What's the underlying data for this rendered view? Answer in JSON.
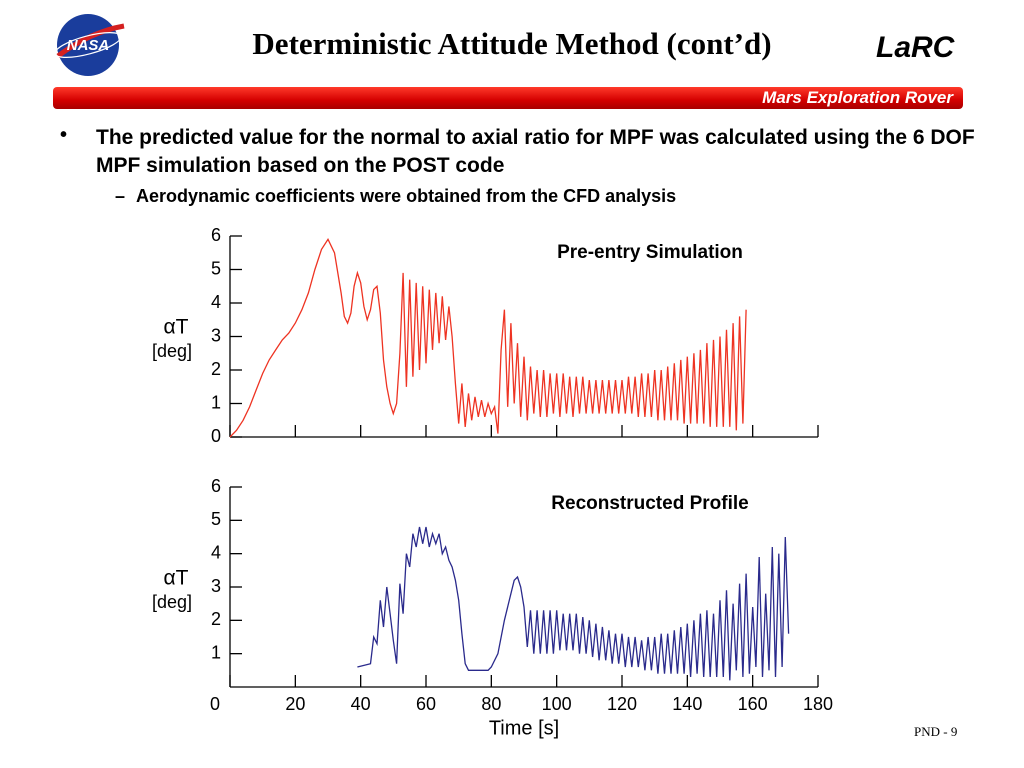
{
  "header": {
    "logo_text": "NASA",
    "title": "Deterministic Attitude Method (cont’d)",
    "center": "LaRC",
    "banner": "Mars Exploration Rover"
  },
  "bullets": [
    {
      "text": "The predicted value for the normal to axial ratio for MPF was calculated using the 6 DOF MPF simulation based on the POST code",
      "sub": [
        "Aerodynamic coefficients were obtained from the CFD analysis"
      ]
    }
  ],
  "footer": "PND - 9",
  "chart_data": [
    {
      "type": "line",
      "title": "Pre-entry Simulation",
      "ylabel": "αT",
      "ylabel_unit": "[deg]",
      "xlim": [
        0,
        180
      ],
      "ylim": [
        0,
        6
      ],
      "yticks": [
        0,
        1,
        2,
        3,
        4,
        5,
        6
      ],
      "x": [
        0,
        2,
        4,
        6,
        8,
        10,
        12,
        14,
        16,
        18,
        20,
        22,
        24,
        26,
        28,
        30,
        32,
        34,
        35,
        36,
        37,
        38,
        39,
        40,
        41,
        42,
        43,
        44,
        45,
        46,
        47,
        48,
        49,
        50,
        51,
        52,
        53,
        54,
        55,
        56,
        57,
        58,
        59,
        60,
        61,
        62,
        63,
        64,
        65,
        66,
        67,
        68,
        69,
        70,
        71,
        72,
        73,
        74,
        75,
        76,
        77,
        78,
        79,
        80,
        81,
        82,
        83,
        84,
        85,
        86,
        87,
        88,
        89,
        90,
        91,
        92,
        93,
        94,
        95,
        96,
        97,
        98,
        99,
        100,
        101,
        102,
        103,
        104,
        105,
        106,
        107,
        108,
        109,
        110,
        111,
        112,
        113,
        114,
        115,
        116,
        117,
        118,
        119,
        120,
        121,
        122,
        123,
        124,
        125,
        126,
        127,
        128,
        129,
        130,
        131,
        132,
        133,
        134,
        135,
        136,
        137,
        138,
        139,
        140,
        141,
        142,
        143,
        144,
        145,
        146,
        147,
        148,
        149,
        150,
        151,
        152,
        153,
        154,
        155,
        156,
        157,
        158
      ],
      "series": [
        {
          "color": "#ee3322",
          "values": [
            0,
            0.2,
            0.5,
            0.9,
            1.4,
            1.9,
            2.3,
            2.6,
            2.9,
            3.1,
            3.4,
            3.8,
            4.3,
            5.0,
            5.6,
            5.9,
            5.5,
            4.3,
            3.6,
            3.4,
            3.7,
            4.5,
            4.9,
            4.6,
            3.9,
            3.5,
            3.8,
            4.4,
            4.5,
            3.7,
            2.3,
            1.5,
            1.0,
            0.7,
            1.0,
            2.5,
            4.9,
            1.5,
            4.7,
            1.8,
            4.6,
            2.0,
            4.5,
            2.2,
            4.4,
            2.6,
            4.3,
            2.8,
            4.2,
            2.9,
            3.9,
            3.0,
            1.6,
            0.4,
            1.6,
            0.3,
            1.3,
            0.5,
            1.2,
            0.6,
            1.1,
            0.6,
            1.0,
            0.7,
            0.9,
            0.1,
            2.6,
            3.8,
            0.9,
            3.4,
            1.0,
            2.8,
            0.6,
            2.4,
            0.5,
            2.1,
            0.7,
            2.0,
            0.6,
            2.0,
            0.6,
            1.9,
            0.7,
            1.9,
            0.6,
            1.9,
            0.7,
            1.8,
            0.6,
            1.8,
            0.7,
            1.8,
            0.7,
            1.7,
            0.7,
            1.7,
            0.7,
            1.7,
            0.7,
            1.7,
            0.7,
            1.7,
            0.7,
            1.7,
            0.7,
            1.8,
            0.7,
            1.8,
            0.6,
            1.9,
            0.6,
            1.9,
            0.6,
            2.0,
            0.5,
            2.0,
            0.5,
            2.1,
            0.5,
            2.2,
            0.5,
            2.3,
            0.4,
            2.4,
            0.4,
            2.5,
            0.4,
            2.6,
            0.4,
            2.8,
            0.3,
            2.9,
            0.3,
            3.0,
            0.3,
            3.2,
            0.3,
            3.4,
            0.2,
            3.6,
            0.4,
            3.8
          ]
        }
      ]
    },
    {
      "type": "line",
      "title": "Reconstructed Profile",
      "ylabel": "αT",
      "ylabel_unit": "[deg]",
      "xlabel": "Time [s]",
      "xlim": [
        0,
        180
      ],
      "ylim": [
        0,
        6
      ],
      "yticks": [
        1,
        2,
        3,
        4,
        5,
        6
      ],
      "xticks": [
        0,
        20,
        40,
        60,
        80,
        100,
        120,
        140,
        160,
        180
      ],
      "x": [
        39,
        43,
        44,
        45,
        46,
        47,
        48,
        49,
        50,
        51,
        52,
        53,
        54,
        55,
        56,
        57,
        58,
        59,
        60,
        61,
        62,
        63,
        64,
        65,
        66,
        67,
        68,
        69,
        70,
        71,
        72,
        73,
        75,
        77,
        79,
        80,
        82,
        84,
        86,
        87,
        88,
        89,
        90,
        91,
        92,
        93,
        94,
        95,
        96,
        97,
        98,
        99,
        100,
        101,
        102,
        103,
        104,
        105,
        106,
        107,
        108,
        109,
        110,
        111,
        112,
        113,
        114,
        115,
        116,
        117,
        118,
        119,
        120,
        121,
        122,
        123,
        124,
        125,
        126,
        127,
        128,
        129,
        130,
        131,
        132,
        133,
        134,
        135,
        136,
        137,
        138,
        139,
        140,
        141,
        142,
        143,
        144,
        145,
        146,
        147,
        148,
        149,
        150,
        151,
        152,
        153,
        154,
        155,
        156,
        157,
        158,
        159,
        160,
        161,
        162,
        163,
        164,
        165,
        166,
        167,
        168,
        169,
        170,
        171
      ],
      "series": [
        {
          "color": "#2a2a8c",
          "values": [
            0.6,
            0.7,
            1.5,
            1.3,
            2.6,
            1.8,
            3.0,
            2.2,
            1.4,
            0.7,
            3.1,
            2.2,
            4.0,
            3.6,
            4.6,
            4.2,
            4.8,
            4.3,
            4.8,
            4.2,
            4.6,
            4.3,
            4.6,
            4.0,
            4.2,
            3.8,
            3.6,
            3.2,
            2.6,
            1.6,
            0.7,
            0.5,
            0.5,
            0.5,
            0.5,
            0.6,
            1.0,
            2.0,
            2.8,
            3.2,
            3.3,
            3.0,
            2.4,
            1.2,
            2.3,
            1.0,
            2.3,
            1.0,
            2.3,
            1.0,
            2.3,
            1.0,
            2.3,
            1.1,
            2.2,
            1.1,
            2.2,
            1.1,
            2.2,
            1.0,
            2.1,
            1.0,
            2.0,
            0.9,
            1.9,
            0.8,
            1.8,
            0.8,
            1.7,
            0.7,
            1.6,
            0.7,
            1.6,
            0.6,
            1.5,
            0.6,
            1.5,
            0.6,
            1.4,
            0.5,
            1.5,
            0.5,
            1.5,
            0.4,
            1.6,
            0.4,
            1.6,
            0.4,
            1.7,
            0.4,
            1.8,
            0.4,
            1.9,
            0.3,
            2.0,
            0.4,
            2.2,
            0.3,
            2.3,
            0.3,
            2.2,
            0.3,
            2.6,
            0.3,
            2.9,
            0.2,
            2.5,
            0.5,
            3.1,
            0.3,
            3.4,
            0.4,
            2.4,
            0.6,
            3.9,
            0.3,
            2.8,
            0.5,
            4.2,
            0.3,
            4.0,
            0.6,
            4.5,
            1.6
          ]
        }
      ]
    }
  ]
}
